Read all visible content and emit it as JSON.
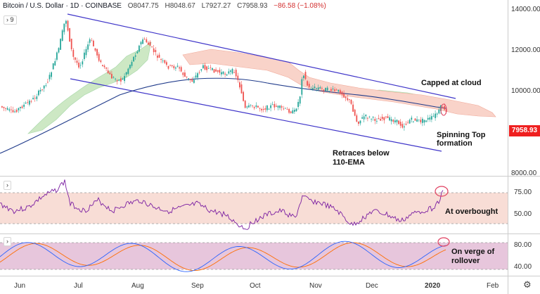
{
  "header": {
    "symbol": "Bitcoin / U.S. Dollar",
    "interval": "1D",
    "exchange": "COINBASE",
    "open": "O8047.75",
    "high": "H8048.67",
    "low": "L7927.27",
    "close": "C7958.93",
    "change": "−86.58 (−1.08%)",
    "pane_toggle": "›  9"
  },
  "price_axis": {
    "labels": [
      "14000.00",
      "12000.00",
      "10000.00",
      "8000.00"
    ],
    "last_price": "7958.93"
  },
  "rsi_axis": {
    "labels": [
      "75.00",
      "50.00"
    ]
  },
  "stoch_axis": {
    "labels": [
      "80.00",
      "40.00"
    ]
  },
  "time_axis": {
    "labels": [
      "Jun",
      "Jul",
      "Aug",
      "Sep",
      "Oct",
      "Nov",
      "Dec",
      "2020",
      "Feb"
    ]
  },
  "annotations": {
    "capped": "Capped at cloud",
    "spinning1": "Spinning Top",
    "spinning2": "formation",
    "retraces1": "Retraces below",
    "retraces2": "110-EMA",
    "overbought": "At overbought",
    "rollover1": "On verge of",
    "rollover2": "rollover"
  },
  "colors": {
    "up": "#26a69a",
    "down": "#ef5350",
    "channel": "#3f35c9",
    "ema": "#1f3a8a",
    "cloud_bull": "#a5d6a7",
    "cloud_bear": "#f5b4a8",
    "rsi": "#7b1fa2",
    "stoch_k": "#2962ff",
    "stoch_d": "#ff6d00",
    "highlight_circle": "#e04060"
  },
  "icons": {
    "settings": "gear-icon"
  }
}
